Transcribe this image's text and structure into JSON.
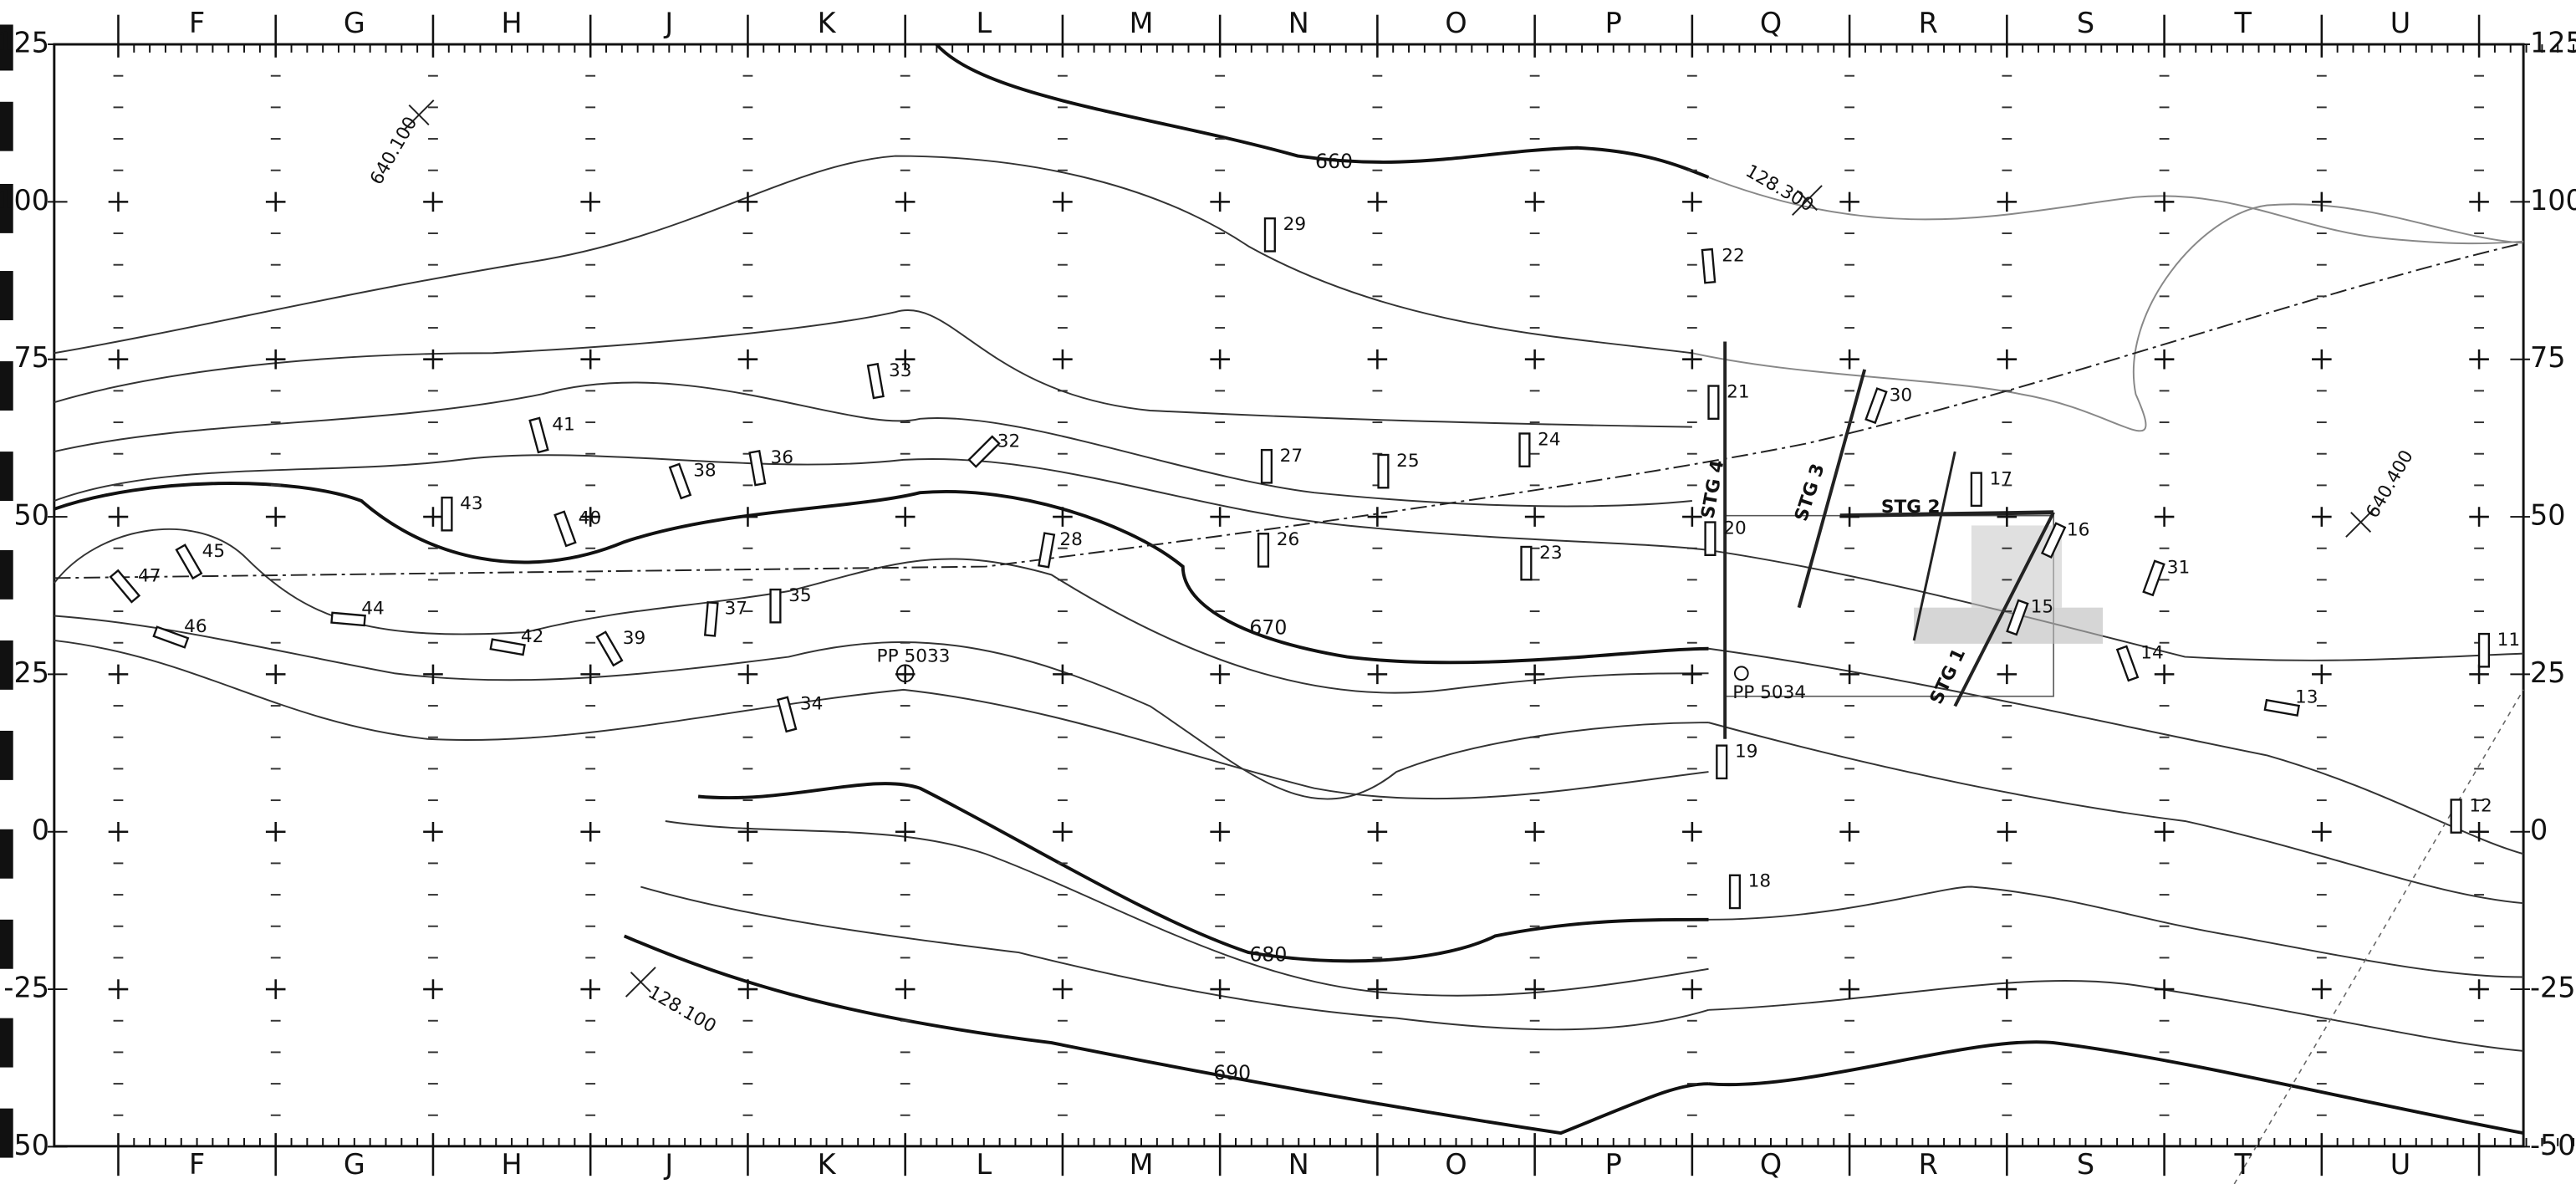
{
  "columns": [
    "F",
    "G",
    "H",
    "J",
    "K",
    "L",
    "M",
    "N",
    "O",
    "P",
    "Q",
    "R",
    "S",
    "T",
    "U"
  ],
  "rows": [
    "125",
    "100",
    "75",
    "50",
    "25",
    "0",
    "-25",
    "-50"
  ],
  "contours": [
    "660",
    "670",
    "680",
    "690"
  ],
  "coordinates": [
    "640.100",
    "128.300",
    "640.400",
    "128.100"
  ],
  "points": [
    "PP 5033",
    "PP 5034"
  ],
  "trenches": [
    "STG 1",
    "STG 2",
    "STG 3",
    "STG 4"
  ],
  "features": [
    "29",
    "22",
    "33",
    "21",
    "30",
    "41",
    "32",
    "24",
    "38",
    "36",
    "27",
    "25",
    "17",
    "43",
    "40",
    "20",
    "16",
    "28",
    "26",
    "23",
    "45",
    "31",
    "47",
    "44",
    "37",
    "35",
    "15",
    "46",
    "42",
    "39",
    "14",
    "11",
    "13",
    "34",
    "19",
    "12",
    "18"
  ]
}
